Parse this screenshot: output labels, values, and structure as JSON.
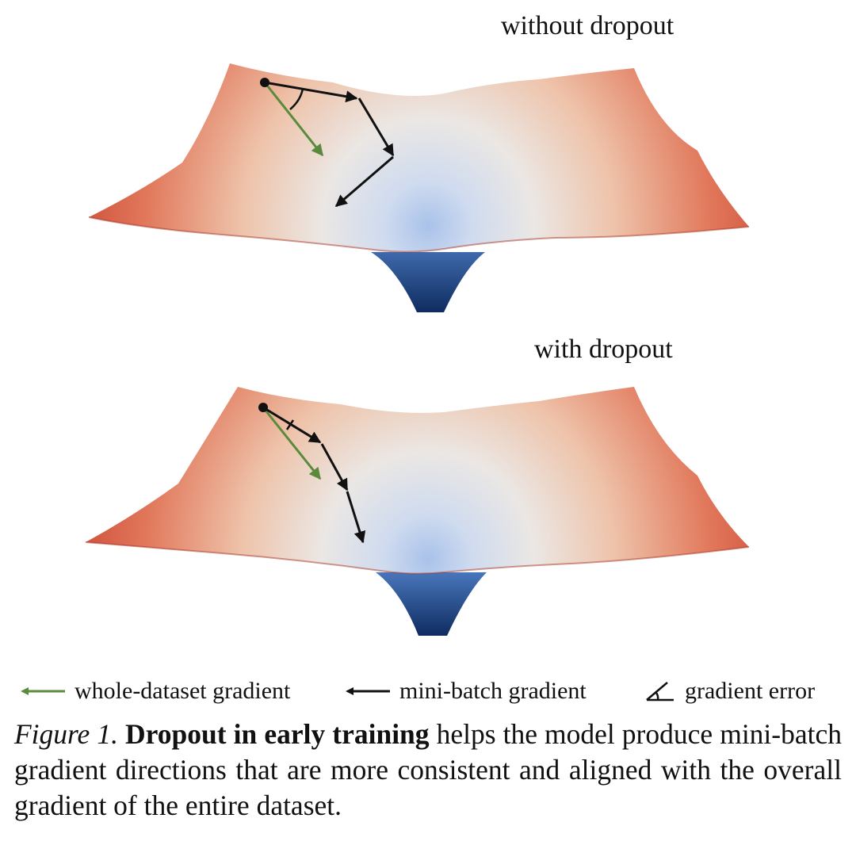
{
  "panels": {
    "top": {
      "title": "without dropout"
    },
    "bottom": {
      "title": "with dropout"
    }
  },
  "legend": {
    "whole_dataset": "whole-dataset gradient",
    "mini_batch": "mini-batch gradient",
    "gradient_error": "gradient error"
  },
  "caption": {
    "label": "Figure 1.",
    "bold": "Dropout in early training",
    "text": "helps the model produce mini-batch gradient directions that are more consistent and aligned with the overall gradient of the entire dataset."
  },
  "colors": {
    "surface_edge": "#c8402e",
    "surface_mid": "#eaa283",
    "surface_center": "#e6e6ea",
    "surface_basin": "#b8cbe9",
    "funnel_bottom": "#0e2d63",
    "whole_dataset_arrow": "#5a8a3c",
    "mini_batch_arrow": "#111111"
  },
  "icons": {
    "whole_dataset": "left-arrow-green-icon",
    "mini_batch": "left-arrow-black-icon",
    "gradient_error": "angle-icon"
  }
}
